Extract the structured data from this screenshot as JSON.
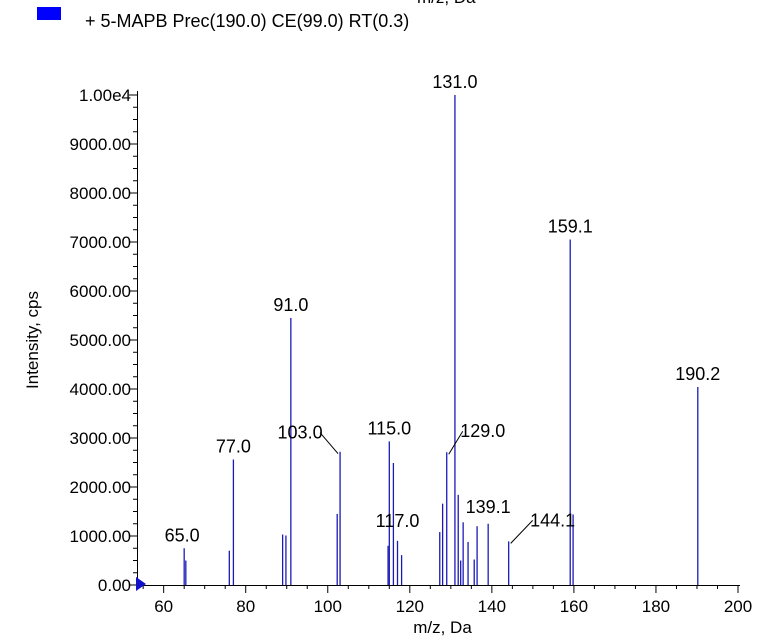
{
  "legend": {
    "entry": "+ 5-MAPB Prec(190.0) CE(99.0) RT(0.3)",
    "swatch_color": "#0000ff",
    "clipped_top_text": "m/z, Da"
  },
  "chart_data": {
    "type": "bar",
    "xlabel": "m/z, Da",
    "ylabel": "Intensity, cps",
    "xlim": [
      53.5,
      200
    ],
    "ylim": [
      0,
      10000
    ],
    "x_ticks": [
      60,
      80,
      100,
      120,
      140,
      160,
      180,
      200
    ],
    "x_tick_labels": [
      "60",
      "80",
      "100",
      "120",
      "140",
      "160",
      "180",
      "200"
    ],
    "y_ticks": [
      0,
      1000,
      2000,
      3000,
      4000,
      5000,
      6000,
      7000,
      8000,
      9000,
      10000
    ],
    "y_tick_labels": [
      "0.00",
      "1000.00",
      "2000.00",
      "3000.00",
      "4000.00",
      "5000.00",
      "6000.00",
      "7000.00",
      "8000.00",
      "9000.00",
      "1.00e4"
    ],
    "bar_color": "#1a1ab8",
    "grid": false,
    "legend_position": "top-left",
    "peaks": [
      {
        "x": 65.0,
        "y": 750
      },
      {
        "x": 65.4,
        "y": 500
      },
      {
        "x": 76.0,
        "y": 700
      },
      {
        "x": 77.0,
        "y": 2560
      },
      {
        "x": 89.0,
        "y": 1030
      },
      {
        "x": 89.8,
        "y": 1010
      },
      {
        "x": 91.0,
        "y": 5450
      },
      {
        "x": 102.3,
        "y": 1450
      },
      {
        "x": 103.0,
        "y": 2720
      },
      {
        "x": 114.7,
        "y": 800
      },
      {
        "x": 115.0,
        "y": 2930
      },
      {
        "x": 116.0,
        "y": 2490
      },
      {
        "x": 117.0,
        "y": 900
      },
      {
        "x": 118.0,
        "y": 610
      },
      {
        "x": 127.3,
        "y": 1080
      },
      {
        "x": 128.0,
        "y": 1660
      },
      {
        "x": 129.0,
        "y": 2710
      },
      {
        "x": 131.0,
        "y": 10000
      },
      {
        "x": 131.8,
        "y": 1840
      },
      {
        "x": 132.4,
        "y": 500
      },
      {
        "x": 133.0,
        "y": 1280
      },
      {
        "x": 134.2,
        "y": 880
      },
      {
        "x": 135.7,
        "y": 520
      },
      {
        "x": 136.4,
        "y": 1200
      },
      {
        "x": 139.1,
        "y": 1250
      },
      {
        "x": 144.1,
        "y": 890
      },
      {
        "x": 159.1,
        "y": 7050
      },
      {
        "x": 159.8,
        "y": 1440
      },
      {
        "x": 190.2,
        "y": 4040
      }
    ],
    "annotations": [
      {
        "text": "65.0",
        "x": 65.0,
        "y": 750,
        "dx": -2,
        "dy": 0,
        "anchor": "middle",
        "leader": false
      },
      {
        "text": "77.0",
        "x": 77.0,
        "y": 2560,
        "dx": 0,
        "dy": 0,
        "anchor": "middle",
        "leader": false
      },
      {
        "text": "91.0",
        "x": 91.0,
        "y": 5450,
        "dx": 0,
        "dy": 0,
        "anchor": "middle",
        "leader": false
      },
      {
        "text": "103.0",
        "x": 103.0,
        "y": 2720,
        "dx": -40,
        "dy": -6,
        "anchor": "middle",
        "leader": true
      },
      {
        "text": "115.0",
        "x": 115.0,
        "y": 2930,
        "dx": 0,
        "dy": 0,
        "anchor": "middle",
        "leader": false
      },
      {
        "text": "117.0",
        "x": 117.0,
        "y": 900,
        "dx": 0,
        "dy": -7,
        "anchor": "middle",
        "leader": false
      },
      {
        "text": "129.0",
        "x": 129.0,
        "y": 2710,
        "dx": 36,
        "dy": -8,
        "anchor": "middle",
        "leader": true
      },
      {
        "text": "131.0",
        "x": 131.0,
        "y": 10000,
        "dx": 0,
        "dy": 0,
        "anchor": "middle",
        "leader": false
      },
      {
        "text": "139.1",
        "x": 139.1,
        "y": 1250,
        "dx": 0,
        "dy": -4,
        "anchor": "middle",
        "leader": false
      },
      {
        "text": "144.1",
        "x": 144.1,
        "y": 890,
        "dx": 44,
        "dy": -8,
        "anchor": "middle",
        "leader": true
      },
      {
        "text": "159.1",
        "x": 159.1,
        "y": 7050,
        "dx": 0,
        "dy": 0,
        "anchor": "middle",
        "leader": false
      },
      {
        "text": "190.2",
        "x": 190.2,
        "y": 4040,
        "dx": 0,
        "dy": 0,
        "anchor": "middle",
        "leader": false
      }
    ]
  }
}
